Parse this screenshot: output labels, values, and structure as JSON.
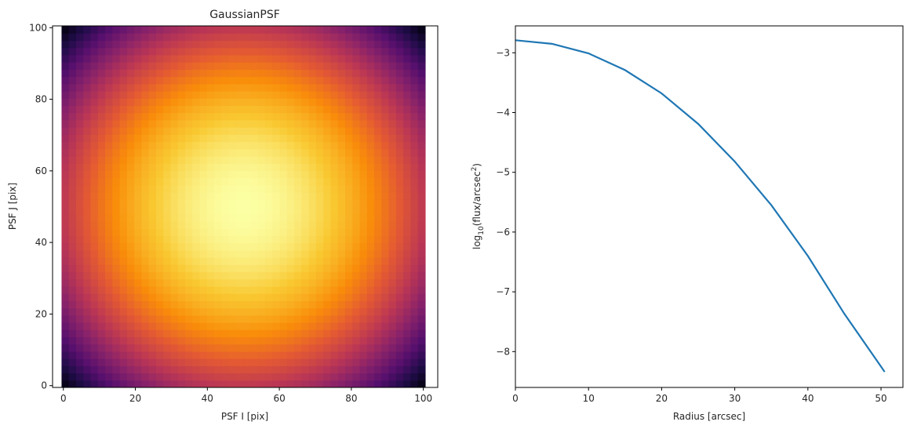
{
  "chart_data": [
    {
      "type": "heatmap",
      "title": "GaussianPSF",
      "xlabel": "PSF I [pix]",
      "ylabel": "PSF J [pix]",
      "xlim": [
        -3,
        104
      ],
      "ylim": [
        -0.5,
        100.5
      ],
      "extent": [
        -0.5,
        100.5,
        -0.5,
        100.5
      ],
      "xticks": [
        0,
        20,
        40,
        60,
        80,
        100
      ],
      "yticks": [
        0,
        20,
        40,
        60,
        80,
        100
      ],
      "colormap": "inferno",
      "center": [
        50,
        50
      ],
      "min_intensity_at_corner": 0.0,
      "max_intensity_at_center": 1.0,
      "grid": false
    },
    {
      "type": "line",
      "title": "",
      "xlabel": "Radius [arcsec]",
      "ylabel_prefix": "log",
      "ylabel_sub": "10",
      "ylabel_mid": "(flux/arcsec",
      "ylabel_sup": "2",
      "ylabel_suffix": ")",
      "xlim": [
        0,
        53
      ],
      "ylim": [
        -8.6,
        -2.55
      ],
      "xticks": [
        0,
        10,
        20,
        30,
        40,
        50
      ],
      "yticks": [
        -3,
        -4,
        -5,
        -6,
        -7,
        -8
      ],
      "ytick_labels": [
        "−3",
        "−4",
        "−5",
        "−6",
        "−7",
        "−8"
      ],
      "grid": false,
      "series": [
        {
          "color": "#1f77b4",
          "x": [
            0,
            5,
            10,
            15,
            20,
            25,
            30,
            35,
            40,
            45,
            50,
            50.5
          ],
          "y": [
            -2.79,
            -2.85,
            -3.01,
            -3.29,
            -3.68,
            -4.19,
            -4.82,
            -5.55,
            -6.4,
            -7.37,
            -8.25,
            -8.34
          ]
        }
      ]
    }
  ]
}
